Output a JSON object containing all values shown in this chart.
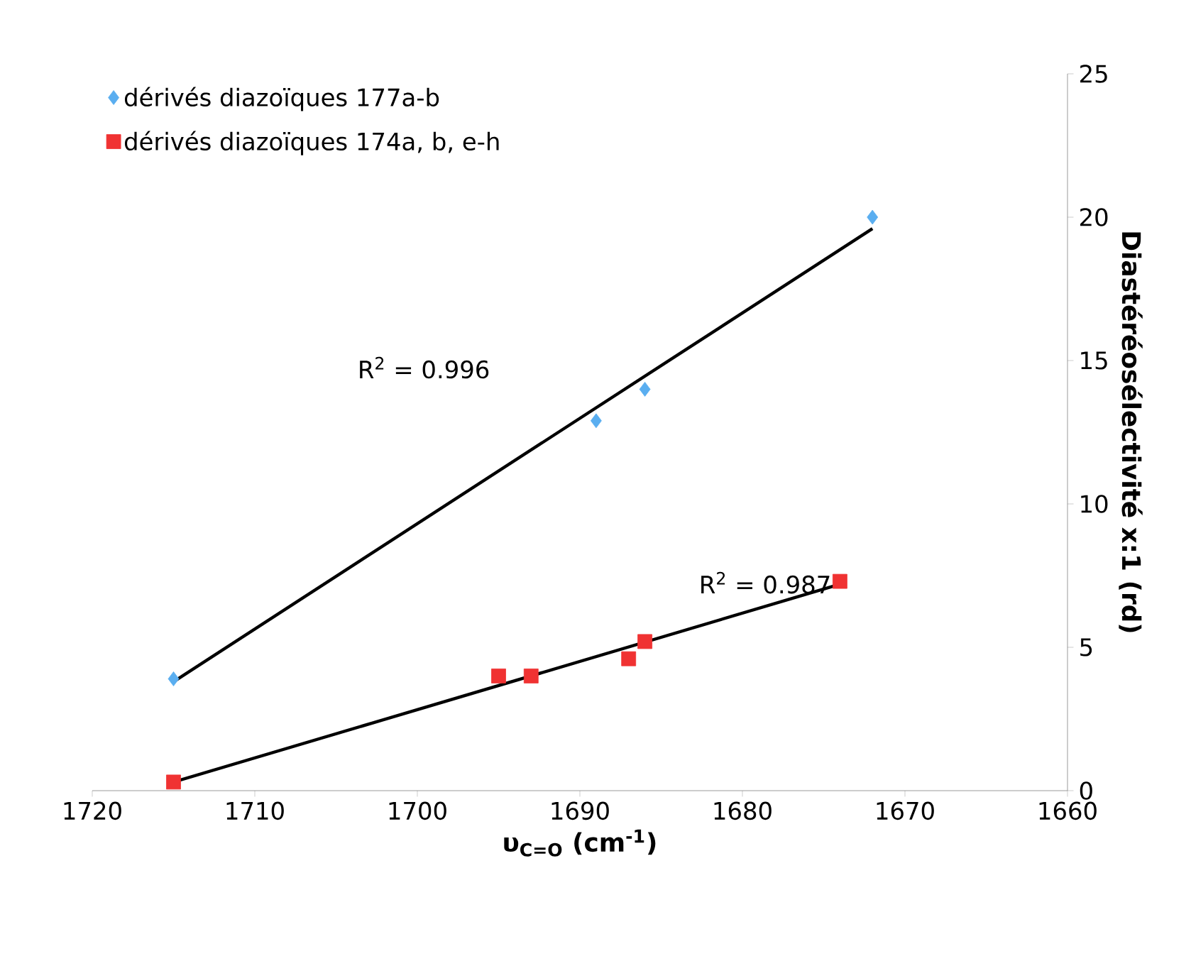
{
  "chart_data": {
    "type": "scatter",
    "xlabel": "υ$_{C=O}$ (cm$^{-1}$)",
    "ylabel": "Diastéréosélectivité x:1 (rd)",
    "xlim": [
      1720,
      1660
    ],
    "ylim": [
      0,
      25
    ],
    "xticks": [
      1720,
      1710,
      1700,
      1690,
      1680,
      1670,
      1660
    ],
    "yticks": [
      0,
      5,
      10,
      15,
      20,
      25
    ],
    "legend": "top left",
    "grid": false,
    "series": [
      {
        "name": "dérivés diazoïques 177a-b",
        "marker": "diamond",
        "color": "#5aaef0",
        "x": [
          1715,
          1689,
          1686,
          1672
        ],
        "values": [
          3.9,
          12.9,
          14.0,
          20.0
        ]
      },
      {
        "name": "dérivés diazoïques 174a, b, e-h",
        "marker": "square",
        "color": "#f03232",
        "x": [
          1715,
          1695,
          1693,
          1687,
          1686,
          1674
        ],
        "values": [
          0.3,
          4.0,
          4.0,
          4.6,
          5.2,
          7.3
        ]
      },
      {
        "type": "line",
        "line_style": "solid",
        "marker": "none",
        "color": "#000000",
        "x": [
          1715,
          1672
        ],
        "values": [
          3.8,
          19.6
        ]
      },
      {
        "type": "line",
        "line_style": "solid",
        "marker": "none",
        "color": "#000000",
        "x": [
          1715,
          1674
        ],
        "values": [
          0.3,
          7.2
        ]
      }
    ],
    "annotations": [
      "R$^{2}$ = 0.996",
      "R$^{2}$ = 0.987"
    ]
  }
}
